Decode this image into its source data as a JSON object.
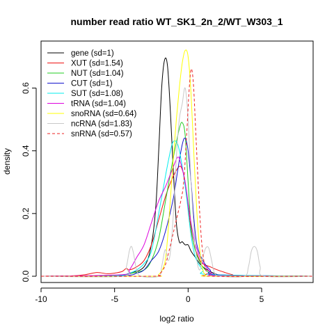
{
  "chart_data": {
    "type": "line",
    "title": "number read ratio WT_SK1_2n_2/WT_W303_1",
    "xlabel": "log2 ratio",
    "ylabel": "density",
    "xlim": [
      -10,
      8.5
    ],
    "ylim": [
      -0.02,
      0.75
    ],
    "xticks": [
      -10,
      -5,
      0,
      5
    ],
    "yticks": [
      0.0,
      0.2,
      0.4,
      0.6
    ],
    "xtick_labels": [
      "-10",
      "-5",
      "0",
      "5"
    ],
    "ytick_labels": [
      "0.0",
      "0.2",
      "0.4",
      "0.6"
    ],
    "grid": false,
    "legend_position": "top-left",
    "series": [
      {
        "name": "gene (sd=1)",
        "color": "#000000",
        "dashed": false,
        "points": [
          [
            -10,
            0
          ],
          [
            -5,
            0.002
          ],
          [
            -4,
            0.01
          ],
          [
            -3,
            0.03
          ],
          [
            -2.5,
            0.1
          ],
          [
            -2.2,
            0.22
          ],
          [
            -2,
            0.4
          ],
          [
            -1.8,
            0.6
          ],
          [
            -1.6,
            0.69
          ],
          [
            -1.4,
            0.67
          ],
          [
            -1.2,
            0.52
          ],
          [
            -1,
            0.33
          ],
          [
            -0.8,
            0.17
          ],
          [
            -0.6,
            0.11
          ],
          [
            -0.4,
            0.11
          ],
          [
            -0.2,
            0.1
          ],
          [
            0,
            0.1
          ],
          [
            0.2,
            0.08
          ],
          [
            0.5,
            0.06
          ],
          [
            1,
            0.03
          ],
          [
            2,
            0.005
          ],
          [
            3,
            0
          ],
          [
            8.5,
            0
          ]
        ]
      },
      {
        "name": "XUT (sd=1.54)",
        "color": "#ee1111",
        "dashed": false,
        "points": [
          [
            -10,
            0
          ],
          [
            -8,
            0.001
          ],
          [
            -7,
            0.005
          ],
          [
            -6.2,
            0.012
          ],
          [
            -5.5,
            0.008
          ],
          [
            -5,
            0.01
          ],
          [
            -4.5,
            0.015
          ],
          [
            -4.2,
            0.025
          ],
          [
            -4,
            0.02
          ],
          [
            -3.5,
            0.03
          ],
          [
            -3,
            0.05
          ],
          [
            -2.5,
            0.1
          ],
          [
            -2,
            0.18
          ],
          [
            -1.5,
            0.26
          ],
          [
            -1,
            0.32
          ],
          [
            -0.6,
            0.35
          ],
          [
            -0.4,
            0.34
          ],
          [
            -0.2,
            0.3
          ],
          [
            0,
            0.22
          ],
          [
            0.3,
            0.12
          ],
          [
            0.7,
            0.06
          ],
          [
            1,
            0.04
          ],
          [
            1.5,
            0.03
          ],
          [
            2,
            0.02
          ],
          [
            2.5,
            0.012
          ],
          [
            3,
            0.005
          ],
          [
            3.6,
            0.002
          ],
          [
            8.5,
            0
          ]
        ]
      },
      {
        "name": "NUT (sd=1.04)",
        "color": "#22cc22",
        "dashed": false,
        "points": [
          [
            -10,
            0
          ],
          [
            -5,
            0.002
          ],
          [
            -4,
            0.008
          ],
          [
            -3,
            0.02
          ],
          [
            -2.5,
            0.05
          ],
          [
            -2,
            0.12
          ],
          [
            -1.5,
            0.25
          ],
          [
            -1,
            0.38
          ],
          [
            -0.6,
            0.47
          ],
          [
            -0.4,
            0.49
          ],
          [
            -0.2,
            0.45
          ],
          [
            0,
            0.3
          ],
          [
            0.2,
            0.16
          ],
          [
            0.5,
            0.08
          ],
          [
            1,
            0.03
          ],
          [
            1.5,
            0.01
          ],
          [
            2,
            0.003
          ],
          [
            8.5,
            0
          ]
        ]
      },
      {
        "name": "CUT (sd=1)",
        "color": "#1111cc",
        "dashed": false,
        "points": [
          [
            -10,
            0
          ],
          [
            -4.5,
            0.002
          ],
          [
            -3.5,
            0.01
          ],
          [
            -3,
            0.02
          ],
          [
            -2.5,
            0.05
          ],
          [
            -2,
            0.08
          ],
          [
            -1.5,
            0.15
          ],
          [
            -1,
            0.25
          ],
          [
            -0.7,
            0.34
          ],
          [
            -0.4,
            0.42
          ],
          [
            -0.2,
            0.44
          ],
          [
            0,
            0.4
          ],
          [
            0.2,
            0.3
          ],
          [
            0.4,
            0.18
          ],
          [
            0.6,
            0.1
          ],
          [
            1,
            0.05
          ],
          [
            1.5,
            0.02
          ],
          [
            2,
            0.005
          ],
          [
            8.5,
            0
          ]
        ]
      },
      {
        "name": "SUT (sd=1.08)",
        "color": "#00eeee",
        "dashed": false,
        "points": [
          [
            -10,
            0
          ],
          [
            -5,
            0.002
          ],
          [
            -4,
            0.01
          ],
          [
            -3.5,
            0.02
          ],
          [
            -3,
            0.04
          ],
          [
            -2.5,
            0.08
          ],
          [
            -2,
            0.2
          ],
          [
            -1.5,
            0.33
          ],
          [
            -1.2,
            0.4
          ],
          [
            -1,
            0.43
          ],
          [
            -0.7,
            0.42
          ],
          [
            -0.4,
            0.35
          ],
          [
            -0.1,
            0.25
          ],
          [
            0.2,
            0.13
          ],
          [
            0.5,
            0.06
          ],
          [
            1,
            0.02
          ],
          [
            1.5,
            0.005
          ],
          [
            8.5,
            0
          ]
        ]
      },
      {
        "name": "tRNA (sd=1.04)",
        "color": "#dd00dd",
        "dashed": false,
        "points": [
          [
            -10,
            0
          ],
          [
            -4.5,
            0.005
          ],
          [
            -4,
            0.02
          ],
          [
            -3.5,
            0.06
          ],
          [
            -3,
            0.1
          ],
          [
            -2.5,
            0.17
          ],
          [
            -2,
            0.24
          ],
          [
            -1.5,
            0.29
          ],
          [
            -1,
            0.35
          ],
          [
            -0.7,
            0.38
          ],
          [
            -0.5,
            0.36
          ],
          [
            -0.2,
            0.3
          ],
          [
            0.1,
            0.2
          ],
          [
            0.4,
            0.12
          ],
          [
            0.8,
            0.06
          ],
          [
            1.2,
            0.03
          ],
          [
            1.6,
            0.01
          ],
          [
            2,
            0.002
          ],
          [
            8.5,
            0
          ]
        ]
      },
      {
        "name": "snoRNA (sd=0.64)",
        "color": "#ffff00",
        "dashed": false,
        "points": [
          [
            -10,
            0
          ],
          [
            -2.5,
            0
          ],
          [
            -2,
            0.005
          ],
          [
            -1.6,
            0.04
          ],
          [
            -1.4,
            0.12
          ],
          [
            -1.2,
            0.25
          ],
          [
            -1,
            0.38
          ],
          [
            -0.8,
            0.5
          ],
          [
            -0.6,
            0.6
          ],
          [
            -0.4,
            0.68
          ],
          [
            -0.2,
            0.72
          ],
          [
            0,
            0.7
          ],
          [
            0.2,
            0.58
          ],
          [
            0.4,
            0.38
          ],
          [
            0.6,
            0.2
          ],
          [
            0.8,
            0.08
          ],
          [
            1,
            0.02
          ],
          [
            1.2,
            0.005
          ],
          [
            1.5,
            0
          ],
          [
            8.5,
            0
          ]
        ]
      },
      {
        "name": "ncRNA (sd=1.83)",
        "color": "#c8c8c8",
        "dashed": false,
        "points": [
          [
            -10,
            0
          ],
          [
            -4.5,
            0
          ],
          [
            -4.2,
            0.03
          ],
          [
            -4,
            0.08
          ],
          [
            -3.85,
            0.095
          ],
          [
            -3.7,
            0.07
          ],
          [
            -3.5,
            0.02
          ],
          [
            -3.2,
            0
          ],
          [
            -2,
            0
          ],
          [
            -1.8,
            0.03
          ],
          [
            -1.6,
            0.08
          ],
          [
            -1.5,
            0.08
          ],
          [
            -1.35,
            0.05
          ],
          [
            -1.2,
            0.08
          ],
          [
            -1,
            0.2
          ],
          [
            -0.8,
            0.38
          ],
          [
            -0.6,
            0.5
          ],
          [
            -0.4,
            0.55
          ],
          [
            -0.2,
            0.6
          ],
          [
            0,
            0.5
          ],
          [
            0.2,
            0.3
          ],
          [
            0.4,
            0.15
          ],
          [
            0.6,
            0.05
          ],
          [
            0.8,
            0.02
          ],
          [
            1,
            0.06
          ],
          [
            1.2,
            0.09
          ],
          [
            1.4,
            0.09
          ],
          [
            1.6,
            0.05
          ],
          [
            1.8,
            0.01
          ],
          [
            2.2,
            0
          ],
          [
            3.8,
            0
          ],
          [
            4.1,
            0.03
          ],
          [
            4.3,
            0.08
          ],
          [
            4.5,
            0.095
          ],
          [
            4.7,
            0.08
          ],
          [
            4.9,
            0.03
          ],
          [
            5.2,
            0
          ],
          [
            8.5,
            0
          ]
        ]
      },
      {
        "name": "snRNA (sd=0.57)",
        "color": "#ee2222",
        "dashed": true,
        "points": [
          [
            -10,
            0
          ],
          [
            -2.5,
            0
          ],
          [
            -2,
            0.005
          ],
          [
            -1.6,
            0.03
          ],
          [
            -1.3,
            0.08
          ],
          [
            -1,
            0.14
          ],
          [
            -0.7,
            0.2
          ],
          [
            -0.5,
            0.24
          ],
          [
            -0.3,
            0.3
          ],
          [
            -0.1,
            0.45
          ],
          [
            0.05,
            0.58
          ],
          [
            0.2,
            0.66
          ],
          [
            0.35,
            0.62
          ],
          [
            0.5,
            0.48
          ],
          [
            0.7,
            0.28
          ],
          [
            0.9,
            0.12
          ],
          [
            1.1,
            0.04
          ],
          [
            1.3,
            0.01
          ],
          [
            1.6,
            0
          ],
          [
            8.5,
            0
          ]
        ]
      }
    ]
  }
}
